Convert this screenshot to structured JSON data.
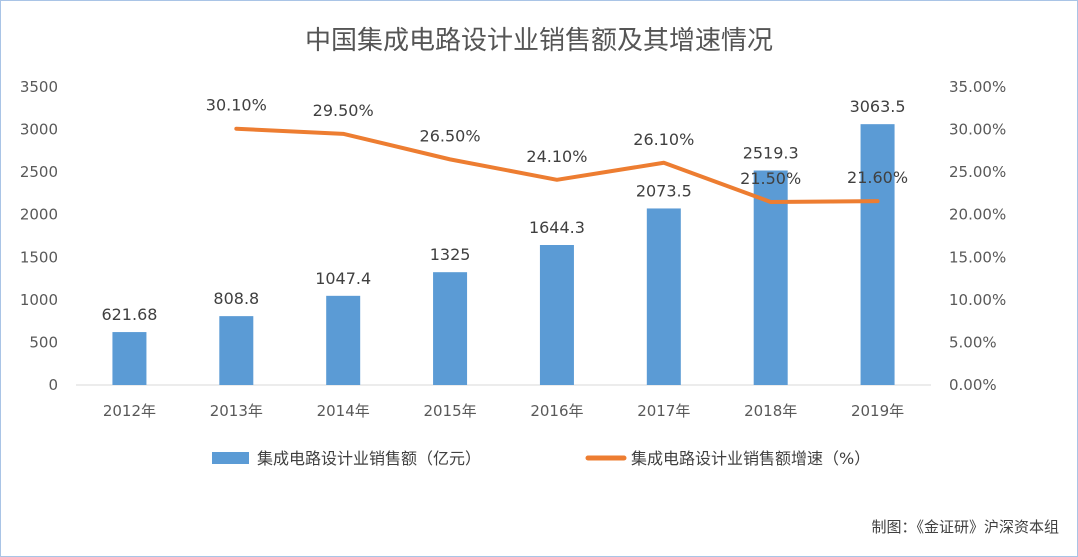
{
  "chart_data": {
    "type": "bar",
    "title": "中国集成电路设计业销售额及其增速情况",
    "categories": [
      "2012年",
      "2013年",
      "2014年",
      "2015年",
      "2016年",
      "2017年",
      "2018年",
      "2019年"
    ],
    "series": [
      {
        "name": "集成电路设计业销售额（亿元）",
        "type": "bar",
        "axis": "left",
        "values": [
          621.68,
          808.8,
          1047.4,
          1325,
          1644.3,
          2073.5,
          2519.3,
          3063.5
        ],
        "labels": [
          "621.68",
          "808.8",
          "1047.4",
          "1325",
          "1644.3",
          "2073.5",
          "2519.3",
          "3063.5"
        ],
        "color": "#5b9bd5"
      },
      {
        "name": "集成电路设计业销售额增速（%）",
        "type": "line",
        "axis": "right",
        "values": [
          null,
          30.1,
          29.5,
          26.5,
          24.1,
          26.1,
          21.5,
          21.6
        ],
        "labels": [
          "",
          "30.10%",
          "29.50%",
          "26.50%",
          "24.10%",
          "26.10%",
          "21.50%",
          "21.60%"
        ],
        "color": "#ed7d31"
      }
    ],
    "y_left": {
      "range": [
        0,
        3500
      ],
      "ticks": [
        0,
        500,
        1000,
        1500,
        2000,
        2500,
        3000,
        3500
      ],
      "tick_labels": [
        "0",
        "500",
        "1000",
        "1500",
        "2000",
        "2500",
        "3000",
        "3500"
      ]
    },
    "y_right": {
      "range": [
        0,
        35
      ],
      "ticks": [
        0,
        5,
        10,
        15,
        20,
        25,
        30,
        35
      ],
      "tick_labels": [
        "0.00%",
        "5.00%",
        "10.00%",
        "15.00%",
        "20.00%",
        "25.00%",
        "30.00%",
        "35.00%"
      ]
    },
    "grid": false,
    "legend_position": "bottom"
  },
  "source_note": "制图：《金证研》沪深资本组"
}
